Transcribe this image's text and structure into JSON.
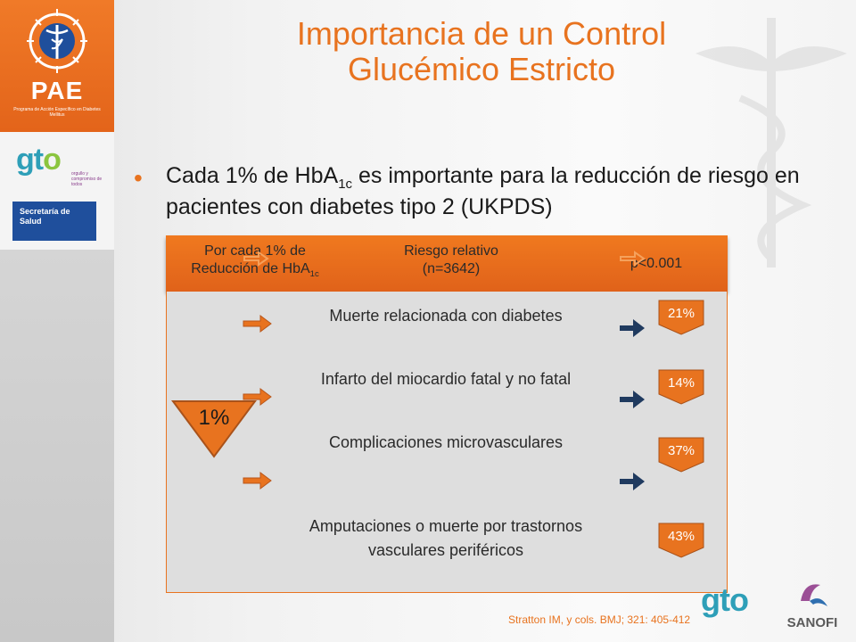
{
  "sidebar": {
    "pae_title": "PAE",
    "pae_subtitle": "Programa de Acción Específico en Diabetes Mellitus",
    "gto_logo_g": "gt",
    "gto_logo_o": "o",
    "gto_tagline": "orgullo y compromiso de todos",
    "secretaria_label": "Secretaría de Salud"
  },
  "title": {
    "line1": "Importancia de un Control",
    "line2": "Glucémico Estricto"
  },
  "bullet": {
    "part1": "Cada 1% de HbA",
    "sub": "1c",
    "part2": " es importante para la reducción de riesgo en pacientes con diabetes tipo 2 (UKPDS)"
  },
  "table": {
    "header": {
      "col1_a": "Por cada 1% de",
      "col1_b": "Reducción de HbA",
      "col1_sub": "1c",
      "col2_a": "Riesgo relativo",
      "col2_b": "(n=3642)",
      "col3": "p<0.001"
    },
    "reduction_label": "1%",
    "rows": [
      {
        "outcome": "Muerte relacionada con diabetes",
        "percent": "21%"
      },
      {
        "outcome": "Infarto del miocardio fatal y no fatal",
        "percent": "14%"
      },
      {
        "outcome": "Complicaciones microvasculares",
        "percent": "37%"
      },
      {
        "outcome": "Amputaciones o muerte por trastornos vasculares periféricos",
        "percent": "43%"
      }
    ]
  },
  "footer": {
    "citation": "Stratton IM, y cols. BMJ; 321: 405-412",
    "gto_logo": "gto",
    "sanofi": "SANOFI"
  },
  "colors": {
    "accent_orange": "#e8731f",
    "navy_arrow": "#1f3a5f",
    "secretaria_blue": "#1f4f9c"
  },
  "icons": [
    "caduceus-icon",
    "orange-arrow-icon",
    "navy-arrow-icon",
    "down-tag-icon",
    "sanofi-logo"
  ]
}
